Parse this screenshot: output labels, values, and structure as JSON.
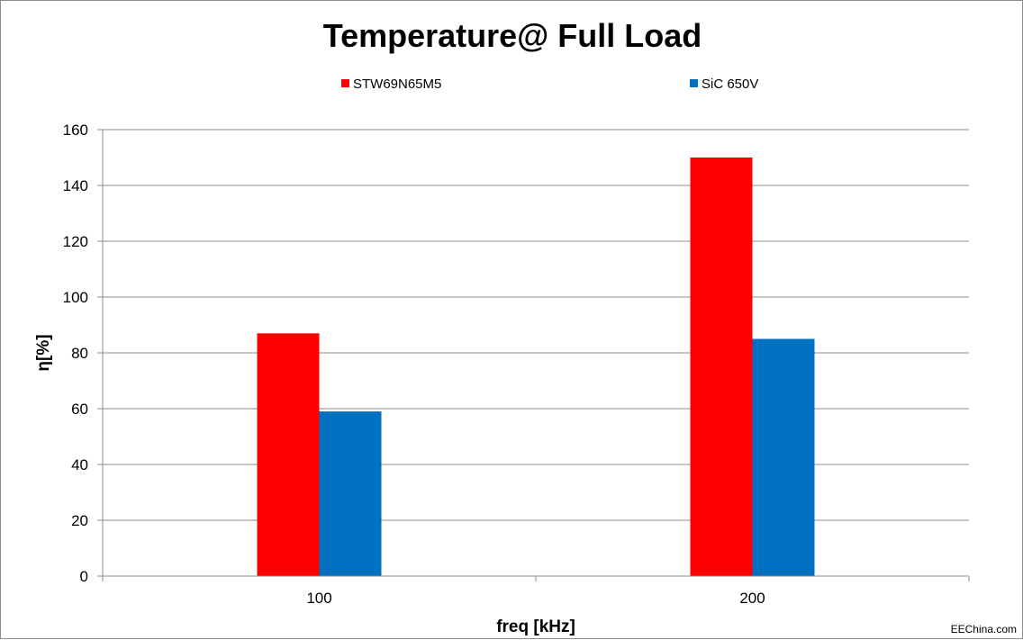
{
  "chart_data": {
    "type": "bar",
    "title": "Temperature@ Full Load",
    "xlabel": "freq [kHz]",
    "ylabel": "η[%]",
    "categories": [
      "100",
      "200"
    ],
    "series": [
      {
        "name": "STW69N65M5",
        "color": "#ff0000",
        "values": [
          87,
          150
        ]
      },
      {
        "name": "SiC 650V",
        "color": "#0070c0",
        "values": [
          59,
          85
        ]
      }
    ],
    "ylim": [
      0,
      160
    ],
    "yticks": [
      0,
      20,
      40,
      60,
      80,
      100,
      120,
      140,
      160
    ],
    "grid": true,
    "legend_position": "top"
  },
  "watermark": "EEChina.com"
}
